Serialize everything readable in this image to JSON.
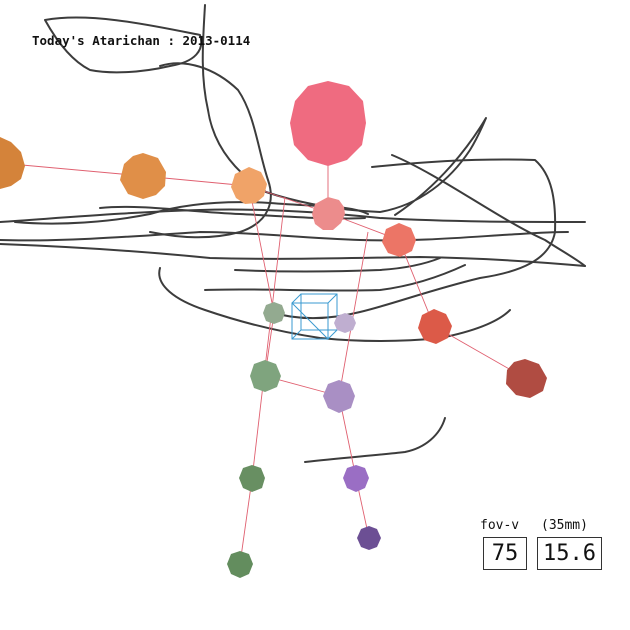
{
  "title": "Today's Atarichan : 2013-0114",
  "hud": {
    "fov_label": "fov-v",
    "lens_label": "(35mm)",
    "fov_value": "75",
    "lens_value": "15.6"
  },
  "colors": {
    "background": "#ffffff",
    "scribble": "#3c3c3c",
    "bone": "#e06070",
    "camera_box": "#3a9ad0"
  },
  "figure": {
    "joints": [
      {
        "id": "head",
        "color": "#ef6b80"
      },
      {
        "id": "neck",
        "color": "#ec8c8c"
      },
      {
        "id": "shoulder-left",
        "color": "#f0a368"
      },
      {
        "id": "elbow-left",
        "color": "#e08f48"
      },
      {
        "id": "hand-left",
        "color": "#d4833a"
      },
      {
        "id": "shoulder-right",
        "color": "#ec7566"
      },
      {
        "id": "elbow-right",
        "color": "#dc5a48"
      },
      {
        "id": "hand-right",
        "color": "#b04c42"
      },
      {
        "id": "hip-left",
        "color": "#93aa90"
      },
      {
        "id": "knee-left",
        "color": "#7fa47e"
      },
      {
        "id": "ankle-left",
        "color": "#688f62"
      },
      {
        "id": "foot-left",
        "color": "#638d5e"
      },
      {
        "id": "hip-right",
        "color": "#bfaed0"
      },
      {
        "id": "knee-right",
        "color": "#a98fc4"
      },
      {
        "id": "ankle-right",
        "color": "#9a6ec4"
      },
      {
        "id": "foot-right",
        "color": "#6c4f94"
      }
    ]
  }
}
